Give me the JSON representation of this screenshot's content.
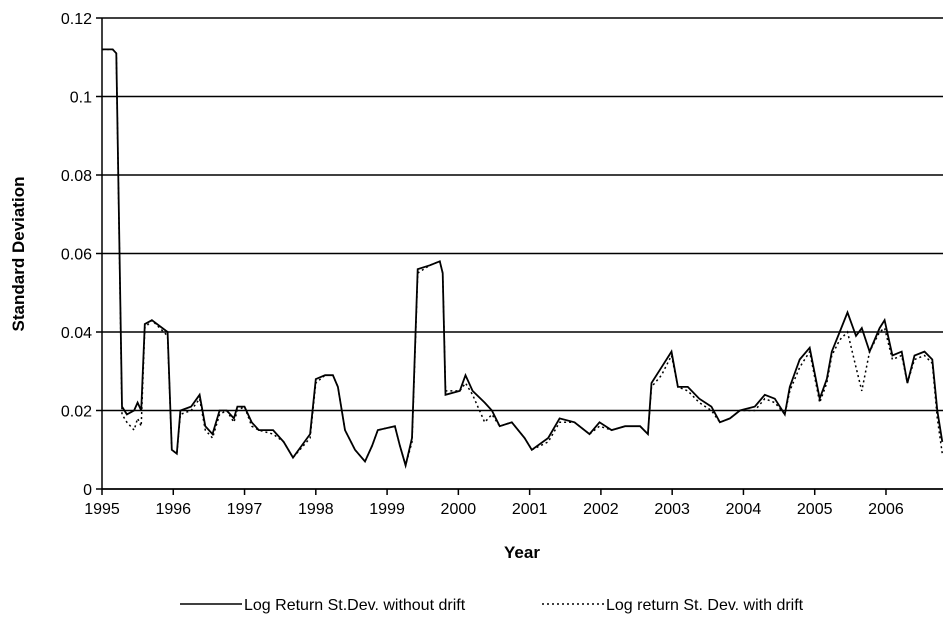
{
  "chart_data": {
    "type": "line",
    "x_label": "Year",
    "y_label": "Standard Deviation",
    "x": [
      1995.0,
      1995.15,
      1995.2,
      1995.28,
      1995.35,
      1995.45,
      1995.5,
      1995.55,
      1995.6,
      1995.7,
      1995.92,
      1995.98,
      1996.05,
      1996.1,
      1996.25,
      1996.37,
      1996.45,
      1996.55,
      1996.65,
      1996.75,
      1996.85,
      1996.9,
      1997.0,
      1997.1,
      1997.2,
      1997.4,
      1997.55,
      1997.68,
      1997.92,
      1998.0,
      1998.13,
      1998.24,
      1998.31,
      1998.41,
      1998.55,
      1998.69,
      1998.79,
      1998.87,
      1999.11,
      1999.18,
      1999.26,
      1999.35,
      1999.43,
      1999.6,
      1999.74,
      1999.78,
      1999.82,
      2000.02,
      2000.1,
      2000.2,
      2000.37,
      2000.47,
      2000.58,
      2000.75,
      2000.93,
      2001.03,
      2001.26,
      2001.42,
      2001.63,
      2001.84,
      2001.98,
      2002.15,
      2002.34,
      2002.55,
      2002.66,
      2002.71,
      2002.85,
      2002.99,
      2003.08,
      2003.22,
      2003.38,
      2003.55,
      2003.67,
      2003.81,
      2003.95,
      2004.16,
      2004.3,
      2004.44,
      2004.58,
      2004.65,
      2004.79,
      2004.93,
      2005.07,
      2005.17,
      2005.24,
      2005.35,
      2005.46,
      2005.58,
      2005.66,
      2005.77,
      2005.91,
      2005.98,
      2006.09,
      2006.22,
      2006.3,
      2006.4,
      2006.54,
      2006.65,
      2006.72,
      2006.79
    ],
    "series": [
      {
        "name": "Log Return St.Dev. without drift",
        "color": "#000000",
        "line_style": "solid",
        "values": [
          0.112,
          0.112,
          0.111,
          0.021,
          0.019,
          0.02,
          0.022,
          0.02,
          0.042,
          0.043,
          0.04,
          0.01,
          0.009,
          0.02,
          0.021,
          0.024,
          0.016,
          0.014,
          0.02,
          0.02,
          0.018,
          0.021,
          0.021,
          0.017,
          0.015,
          0.015,
          0.012,
          0.008,
          0.014,
          0.028,
          0.029,
          0.029,
          0.026,
          0.015,
          0.01,
          0.007,
          0.011,
          0.015,
          0.016,
          0.011,
          0.006,
          0.013,
          0.056,
          0.057,
          0.058,
          0.055,
          0.024,
          0.025,
          0.029,
          0.025,
          0.022,
          0.02,
          0.016,
          0.017,
          0.013,
          0.01,
          0.013,
          0.018,
          0.017,
          0.014,
          0.017,
          0.015,
          0.016,
          0.016,
          0.014,
          0.027,
          0.031,
          0.035,
          0.026,
          0.026,
          0.023,
          0.021,
          0.017,
          0.018,
          0.02,
          0.021,
          0.024,
          0.023,
          0.019,
          0.026,
          0.033,
          0.036,
          0.023,
          0.028,
          0.035,
          0.04,
          0.045,
          0.039,
          0.041,
          0.035,
          0.041,
          0.043,
          0.034,
          0.035,
          0.027,
          0.034,
          0.035,
          0.033,
          0.02,
          0.012
        ]
      },
      {
        "name": "Log return St. Dev. with drift",
        "color": "#000000",
        "line_style": "dotted",
        "values": [
          0.112,
          0.112,
          0.111,
          0.019,
          0.017,
          0.015,
          0.018,
          0.016,
          0.041,
          0.043,
          0.039,
          0.01,
          0.009,
          0.019,
          0.02,
          0.023,
          0.015,
          0.013,
          0.019,
          0.02,
          0.017,
          0.02,
          0.021,
          0.016,
          0.015,
          0.014,
          0.012,
          0.008,
          0.013,
          0.027,
          0.029,
          0.029,
          0.026,
          0.015,
          0.01,
          0.007,
          0.011,
          0.015,
          0.016,
          0.011,
          0.006,
          0.012,
          0.055,
          0.057,
          0.058,
          0.055,
          0.025,
          0.025,
          0.027,
          0.024,
          0.017,
          0.019,
          0.016,
          0.017,
          0.013,
          0.01,
          0.012,
          0.017,
          0.017,
          0.014,
          0.016,
          0.015,
          0.016,
          0.016,
          0.014,
          0.026,
          0.029,
          0.034,
          0.026,
          0.025,
          0.022,
          0.02,
          0.017,
          0.018,
          0.02,
          0.02,
          0.023,
          0.022,
          0.019,
          0.025,
          0.031,
          0.035,
          0.022,
          0.027,
          0.034,
          0.038,
          0.04,
          0.031,
          0.025,
          0.035,
          0.04,
          0.041,
          0.033,
          0.034,
          0.027,
          0.033,
          0.034,
          0.032,
          0.018,
          0.009
        ]
      }
    ],
    "xlim": [
      1995,
      2006.8
    ],
    "xticks": [
      1995,
      1996,
      1997,
      1998,
      1999,
      2000,
      2001,
      2002,
      2003,
      2004,
      2005,
      2006
    ],
    "ylim": [
      0,
      0.12
    ],
    "yticks": [
      0,
      0.02,
      0.04,
      0.06,
      0.08,
      0.1,
      0.12
    ],
    "grid": true,
    "legend": "bottom"
  }
}
